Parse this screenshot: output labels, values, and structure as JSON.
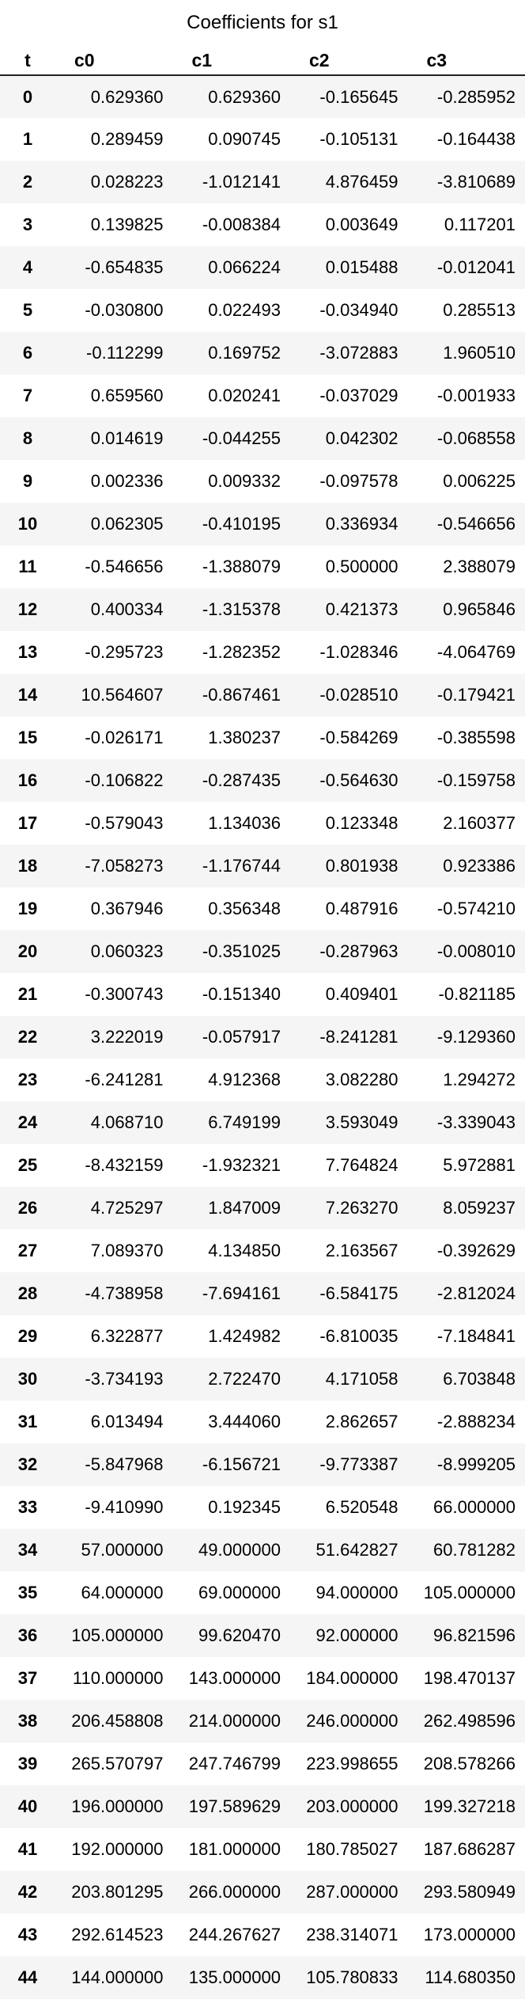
{
  "table": {
    "caption": "Coefficients for s1",
    "columns": [
      "t",
      "c0",
      "c1",
      "c2",
      "c3"
    ],
    "rows": [
      [
        "0",
        "0.629360",
        "0.629360",
        "-0.165645",
        "-0.285952"
      ],
      [
        "1",
        "0.289459",
        "0.090745",
        "-0.105131",
        "-0.164438"
      ],
      [
        "2",
        "0.028223",
        "-1.012141",
        "4.876459",
        "-3.810689"
      ],
      [
        "3",
        "0.139825",
        "-0.008384",
        "0.003649",
        "0.117201"
      ],
      [
        "4",
        "-0.654835",
        "0.066224",
        "0.015488",
        "-0.012041"
      ],
      [
        "5",
        "-0.030800",
        "0.022493",
        "-0.034940",
        "0.285513"
      ],
      [
        "6",
        "-0.112299",
        "0.169752",
        "-3.072883",
        "1.960510"
      ],
      [
        "7",
        "0.659560",
        "0.020241",
        "-0.037029",
        "-0.001933"
      ],
      [
        "8",
        "0.014619",
        "-0.044255",
        "0.042302",
        "-0.068558"
      ],
      [
        "9",
        "0.002336",
        "0.009332",
        "-0.097578",
        "0.006225"
      ],
      [
        "10",
        "0.062305",
        "-0.410195",
        "0.336934",
        "-0.546656"
      ],
      [
        "11",
        "-0.546656",
        "-1.388079",
        "0.500000",
        "2.388079"
      ],
      [
        "12",
        "0.400334",
        "-1.315378",
        "0.421373",
        "0.965846"
      ],
      [
        "13",
        "-0.295723",
        "-1.282352",
        "-1.028346",
        "-4.064769"
      ],
      [
        "14",
        "10.564607",
        "-0.867461",
        "-0.028510",
        "-0.179421"
      ],
      [
        "15",
        "-0.026171",
        "1.380237",
        "-0.584269",
        "-0.385598"
      ],
      [
        "16",
        "-0.106822",
        "-0.287435",
        "-0.564630",
        "-0.159758"
      ],
      [
        "17",
        "-0.579043",
        "1.134036",
        "0.123348",
        "2.160377"
      ],
      [
        "18",
        "-7.058273",
        "-1.176744",
        "0.801938",
        "0.923386"
      ],
      [
        "19",
        "0.367946",
        "0.356348",
        "0.487916",
        "-0.574210"
      ],
      [
        "20",
        "0.060323",
        "-0.351025",
        "-0.287963",
        "-0.008010"
      ],
      [
        "21",
        "-0.300743",
        "-0.151340",
        "0.409401",
        "-0.821185"
      ],
      [
        "22",
        "3.222019",
        "-0.057917",
        "-8.241281",
        "-9.129360"
      ],
      [
        "23",
        "-6.241281",
        "4.912368",
        "3.082280",
        "1.294272"
      ],
      [
        "24",
        "4.068710",
        "6.749199",
        "3.593049",
        "-3.339043"
      ],
      [
        "25",
        "-8.432159",
        "-1.932321",
        "7.764824",
        "5.972881"
      ],
      [
        "26",
        "4.725297",
        "1.847009",
        "7.263270",
        "8.059237"
      ],
      [
        "27",
        "7.089370",
        "4.134850",
        "2.163567",
        "-0.392629"
      ],
      [
        "28",
        "-4.738958",
        "-7.694161",
        "-6.584175",
        "-2.812024"
      ],
      [
        "29",
        "6.322877",
        "1.424982",
        "-6.810035",
        "-7.184841"
      ],
      [
        "30",
        "-3.734193",
        "2.722470",
        "4.171058",
        "6.703848"
      ],
      [
        "31",
        "6.013494",
        "3.444060",
        "2.862657",
        "-2.888234"
      ],
      [
        "32",
        "-5.847968",
        "-6.156721",
        "-9.773387",
        "-8.999205"
      ],
      [
        "33",
        "-9.410990",
        "0.192345",
        "6.520548",
        "66.000000"
      ],
      [
        "34",
        "57.000000",
        "49.000000",
        "51.642827",
        "60.781282"
      ],
      [
        "35",
        "64.000000",
        "69.000000",
        "94.000000",
        "105.000000"
      ],
      [
        "36",
        "105.000000",
        "99.620470",
        "92.000000",
        "96.821596"
      ],
      [
        "37",
        "110.000000",
        "143.000000",
        "184.000000",
        "198.470137"
      ],
      [
        "38",
        "206.458808",
        "214.000000",
        "246.000000",
        "262.498596"
      ],
      [
        "39",
        "265.570797",
        "247.746799",
        "223.998655",
        "208.578266"
      ],
      [
        "40",
        "196.000000",
        "197.589629",
        "203.000000",
        "199.327218"
      ],
      [
        "41",
        "192.000000",
        "181.000000",
        "180.785027",
        "187.686287"
      ],
      [
        "42",
        "203.801295",
        "266.000000",
        "287.000000",
        "293.580949"
      ],
      [
        "43",
        "292.614523",
        "244.267627",
        "238.314071",
        "173.000000"
      ],
      [
        "44",
        "144.000000",
        "135.000000",
        "105.780833",
        "114.680350"
      ]
    ]
  }
}
